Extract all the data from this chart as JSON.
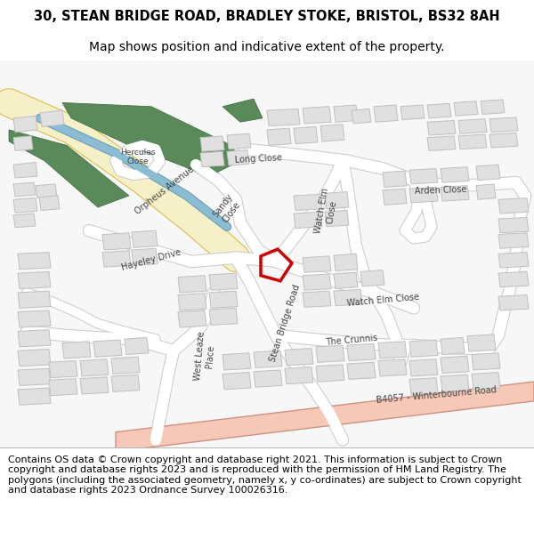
{
  "title_line1": "30, STEAN BRIDGE ROAD, BRADLEY STOKE, BRISTOL, BS32 8AH",
  "title_line2": "Map shows position and indicative extent of the property.",
  "footer": "Contains OS data © Crown copyright and database right 2021. This information is subject to Crown copyright and database rights 2023 and is reproduced with the permission of HM Land Registry. The polygons (including the associated geometry, namely x, y co-ordinates) are subject to Crown copyright and database rights 2023 Ordnance Survey 100026316.",
  "map_bg": "#f7f7f7",
  "road_fill": "#ffffff",
  "road_edge": "#cccccc",
  "building_fill": "#e0e0e0",
  "building_edge": "#c0c0c0",
  "green_fill": "#5a8a5a",
  "green_edge": "#3a6a3a",
  "canal_fill": "#8abcd4",
  "canal_edge": "#6a9cb4",
  "yellow_road_fill": "#f5f0c8",
  "yellow_road_edge": "#e0b840",
  "pink_road_fill": "#f5c8b8",
  "pink_road_edge": "#d09080",
  "plot_edge": "#cc0000",
  "title_fontsize": 10.5,
  "subtitle_fontsize": 10,
  "footer_fontsize": 8,
  "label_fontsize": 7,
  "label_color": "#444444"
}
